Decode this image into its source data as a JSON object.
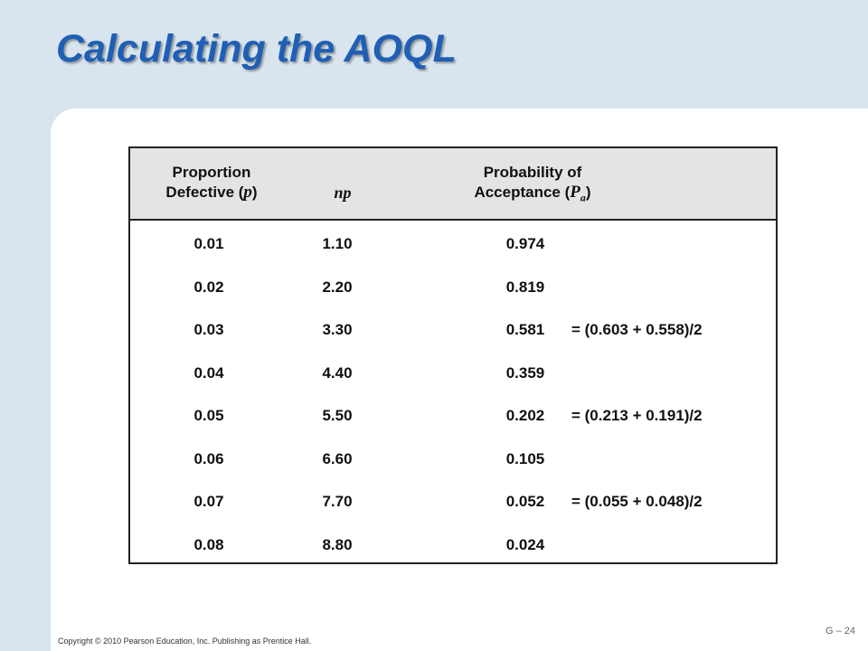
{
  "slide": {
    "title": "Calculating the AOQL",
    "copyright": "Copyright © 2010 Pearson Education, Inc. Publishing as Prentice Hall.",
    "page_number": "G – 24"
  },
  "table": {
    "headers": {
      "proportion_line1": "Proportion",
      "proportion_line2": "Defective (",
      "proportion_symbol": "p",
      "proportion_close": ")",
      "np": "np",
      "probability_line1": "Probability of",
      "probability_line2": "Acceptance (",
      "probability_symbol": "P",
      "probability_subscript": "a",
      "probability_close": ")"
    },
    "rows": [
      {
        "p": "0.01",
        "np": "1.10",
        "pa": "0.974",
        "note": ""
      },
      {
        "p": "0.02",
        "np": "2.20",
        "pa": "0.819",
        "note": ""
      },
      {
        "p": "0.03",
        "np": "3.30",
        "pa": "0.581",
        "note": "= (0.603 + 0.558)/2"
      },
      {
        "p": "0.04",
        "np": "4.40",
        "pa": "0.359",
        "note": ""
      },
      {
        "p": "0.05",
        "np": "5.50",
        "pa": "0.202",
        "note": "= (0.213 + 0.191)/2"
      },
      {
        "p": "0.06",
        "np": "6.60",
        "pa": "0.105",
        "note": ""
      },
      {
        "p": "0.07",
        "np": "7.70",
        "pa": "0.052",
        "note": "= (0.055 + 0.048)/2"
      },
      {
        "p": "0.08",
        "np": "8.80",
        "pa": "0.024",
        "note": ""
      }
    ]
  }
}
